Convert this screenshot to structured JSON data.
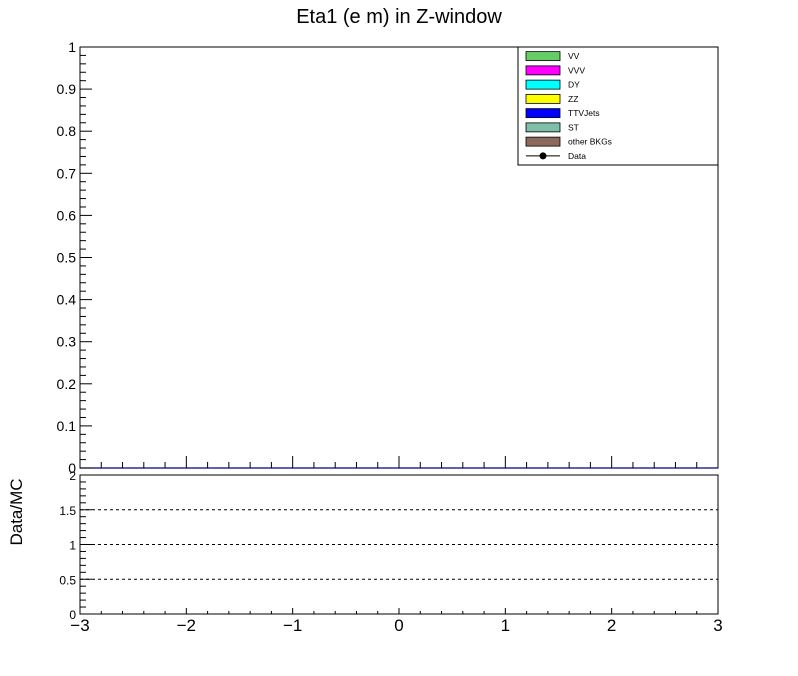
{
  "chart_data": [
    {
      "type": "bar",
      "title": "Eta1 (e m) in Z-window",
      "xlim": [
        -3,
        3
      ],
      "ylim": [
        0,
        1
      ],
      "y_ticks": [
        0,
        0.1,
        0.2,
        0.3,
        0.4,
        0.5,
        0.6,
        0.7,
        0.8,
        0.9,
        1
      ],
      "y_tick_labels": [
        "0",
        "0.1",
        "0.2",
        "0.3",
        "0.4",
        "0.5",
        "0.6",
        "0.7",
        "0.8",
        "0.9",
        "1"
      ],
      "grid": false,
      "legend_position": "top-right",
      "legend": [
        {
          "label": "VV",
          "color": "#66cc66",
          "kind": "fill"
        },
        {
          "label": "VVV",
          "color": "#ff00ff",
          "kind": "fill"
        },
        {
          "label": "DY",
          "color": "#00ffff",
          "kind": "fill"
        },
        {
          "label": "ZZ",
          "color": "#ffff00",
          "kind": "fill"
        },
        {
          "label": "TTVJets",
          "color": "#0000ff",
          "kind": "fill"
        },
        {
          "label": "ST",
          "color": "#7fbfa8",
          "kind": "fill"
        },
        {
          "label": "other BKGs",
          "color": "#8c6a5c",
          "kind": "fill"
        },
        {
          "label": "Data",
          "color": "#000000",
          "kind": "marker"
        }
      ],
      "series": []
    },
    {
      "type": "line",
      "ylabel": "Data/MC",
      "xlim": [
        -3,
        3
      ],
      "ylim": [
        0,
        2
      ],
      "y_ticks": [
        0,
        0.5,
        1,
        1.5,
        2
      ],
      "y_tick_labels": [
        "0",
        "0.5",
        "1",
        "1.5",
        "2"
      ],
      "x_ticks": [
        -3,
        -2,
        -1,
        0,
        1,
        2,
        3
      ],
      "x_tick_labels": [
        "−3",
        "−2",
        "−1",
        "0",
        "1",
        "2",
        "3"
      ],
      "reference_lines": [
        0.5,
        1,
        1.5
      ],
      "series": []
    }
  ]
}
